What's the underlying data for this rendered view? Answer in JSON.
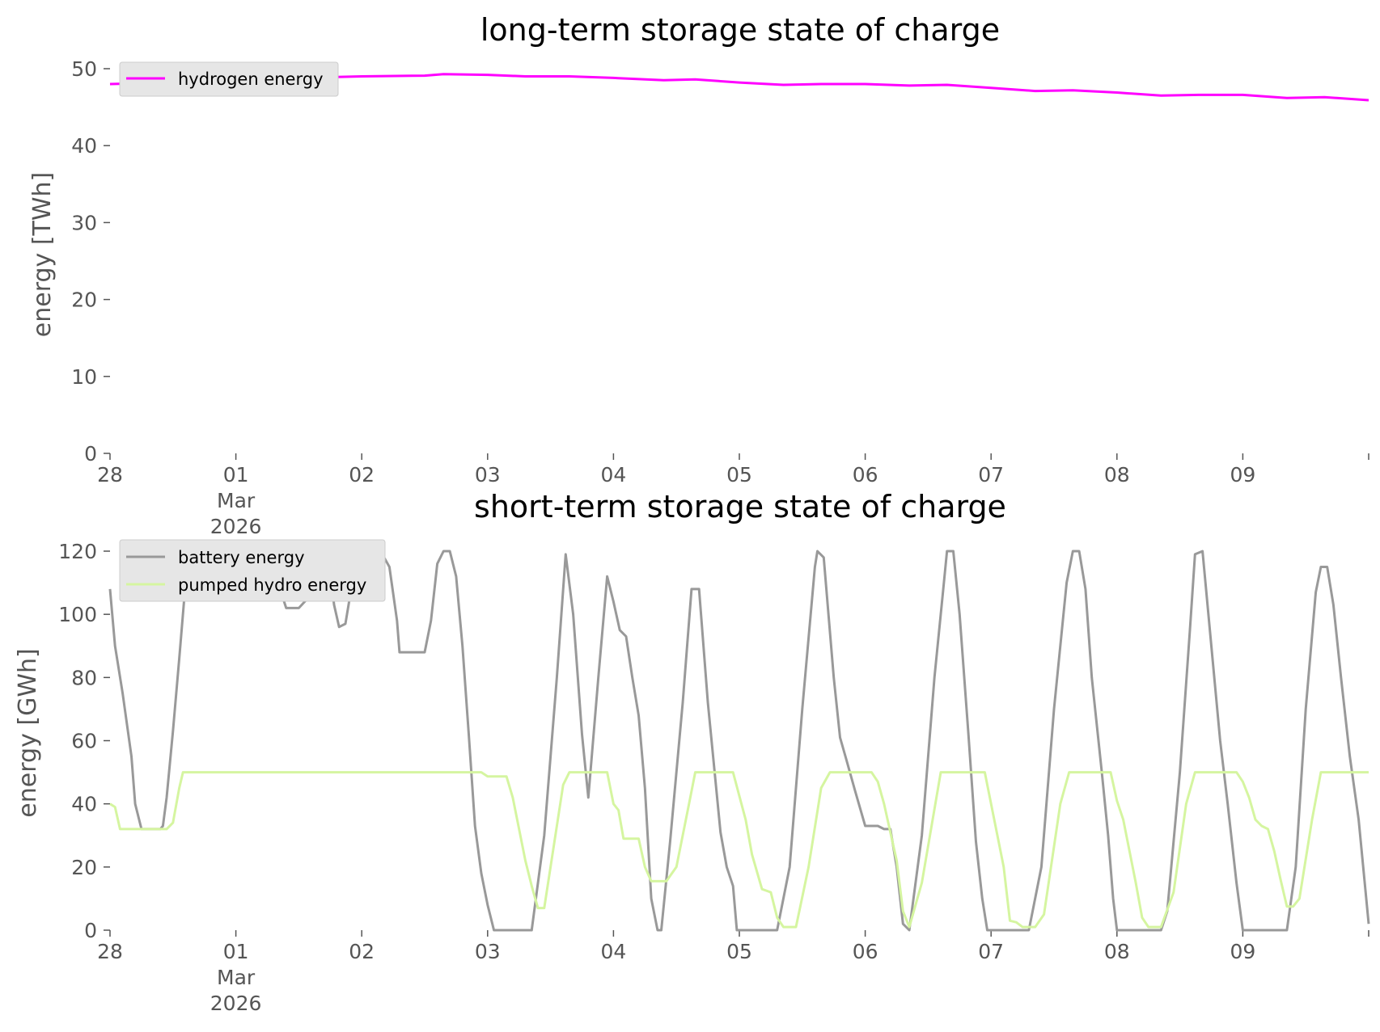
{
  "chart_data": [
    {
      "type": "line",
      "title": "long-term storage state of charge",
      "xlabel": "",
      "ylabel": "energy [TWh]",
      "ylim": [
        0,
        50
      ],
      "yticks": [
        "0",
        "10",
        "20",
        "30",
        "40",
        "50"
      ],
      "xlim": [
        0,
        10
      ],
      "xticks": [
        {
          "x": 0,
          "label": "28"
        },
        {
          "x": 1,
          "label": "01\nMar\n2026"
        },
        {
          "x": 2,
          "label": "02"
        },
        {
          "x": 3,
          "label": "03"
        },
        {
          "x": 4,
          "label": "04"
        },
        {
          "x": 5,
          "label": "05"
        },
        {
          "x": 6,
          "label": "06"
        },
        {
          "x": 7,
          "label": "07"
        },
        {
          "x": 8,
          "label": "08"
        },
        {
          "x": 9,
          "label": "09"
        },
        {
          "x": 10,
          "label": ""
        }
      ],
      "grid": false,
      "legend_position": "top-left",
      "series": [
        {
          "name": "hydrogen energy",
          "color": "#ff00ff",
          "points": [
            [
              0.0,
              48.0
            ],
            [
              0.5,
              48.2
            ],
            [
              1.0,
              48.6
            ],
            [
              1.5,
              48.8
            ],
            [
              2.0,
              49.0
            ],
            [
              2.5,
              49.1
            ],
            [
              2.65,
              49.3
            ],
            [
              3.0,
              49.2
            ],
            [
              3.3,
              49.0
            ],
            [
              3.65,
              49.0
            ],
            [
              4.0,
              48.8
            ],
            [
              4.4,
              48.5
            ],
            [
              4.65,
              48.6
            ],
            [
              5.0,
              48.2
            ],
            [
              5.35,
              47.9
            ],
            [
              5.65,
              48.0
            ],
            [
              6.0,
              48.0
            ],
            [
              6.35,
              47.8
            ],
            [
              6.65,
              47.9
            ],
            [
              7.0,
              47.5
            ],
            [
              7.35,
              47.1
            ],
            [
              7.65,
              47.2
            ],
            [
              8.0,
              46.9
            ],
            [
              8.35,
              46.5
            ],
            [
              8.65,
              46.6
            ],
            [
              9.0,
              46.6
            ],
            [
              9.35,
              46.2
            ],
            [
              9.65,
              46.3
            ],
            [
              10.0,
              45.9
            ]
          ]
        }
      ]
    },
    {
      "type": "line",
      "title": "short-term storage state of charge",
      "xlabel": "",
      "ylabel": "energy [GWh]",
      "ylim": [
        0,
        120
      ],
      "yticks": [
        "0",
        "20",
        "40",
        "60",
        "80",
        "100",
        "120"
      ],
      "xlim": [
        0,
        10
      ],
      "xticks": [
        {
          "x": 0,
          "label": "28"
        },
        {
          "x": 1,
          "label": "01\nMar\n2026"
        },
        {
          "x": 2,
          "label": "02"
        },
        {
          "x": 3,
          "label": "03"
        },
        {
          "x": 4,
          "label": "04"
        },
        {
          "x": 5,
          "label": "05"
        },
        {
          "x": 6,
          "label": "06"
        },
        {
          "x": 7,
          "label": "07"
        },
        {
          "x": 8,
          "label": "08"
        },
        {
          "x": 9,
          "label": "09"
        },
        {
          "x": 10,
          "label": ""
        }
      ],
      "grid": false,
      "legend_position": "top-left",
      "series": [
        {
          "name": "battery energy",
          "color": "#999999",
          "points": [
            [
              0.0,
              108
            ],
            [
              0.04,
              90
            ],
            [
              0.1,
              75
            ],
            [
              0.17,
              55
            ],
            [
              0.2,
              40
            ],
            [
              0.25,
              32
            ],
            [
              0.4,
              32
            ],
            [
              0.42,
              33
            ],
            [
              0.45,
              42
            ],
            [
              0.5,
              63
            ],
            [
              0.55,
              86
            ],
            [
              0.6,
              110
            ],
            [
              0.65,
              120
            ],
            [
              1.1,
              120
            ],
            [
              1.25,
              120
            ],
            [
              1.3,
              115
            ],
            [
              1.35,
              108
            ],
            [
              1.4,
              102
            ],
            [
              1.5,
              102
            ],
            [
              1.57,
              105
            ],
            [
              1.6,
              115
            ],
            [
              1.65,
              120
            ],
            [
              1.7,
              120
            ],
            [
              1.75,
              113
            ],
            [
              1.78,
              103
            ],
            [
              1.82,
              96
            ],
            [
              1.87,
              97
            ],
            [
              1.95,
              116
            ],
            [
              2.0,
              120
            ],
            [
              2.15,
              120
            ],
            [
              2.22,
              115
            ],
            [
              2.28,
              98
            ],
            [
              2.3,
              88
            ],
            [
              2.45,
              88
            ],
            [
              2.5,
              88
            ],
            [
              2.55,
              98
            ],
            [
              2.6,
              116
            ],
            [
              2.65,
              120
            ],
            [
              2.7,
              120
            ],
            [
              2.75,
              112
            ],
            [
              2.8,
              90
            ],
            [
              2.85,
              62
            ],
            [
              2.9,
              33
            ],
            [
              2.95,
              18
            ],
            [
              3.0,
              8
            ],
            [
              3.05,
              0
            ],
            [
              3.35,
              0
            ],
            [
              3.45,
              30
            ],
            [
              3.55,
              80
            ],
            [
              3.62,
              119
            ],
            [
              3.68,
              100
            ],
            [
              3.75,
              62
            ],
            [
              3.8,
              42
            ],
            [
              3.88,
              80
            ],
            [
              3.95,
              112
            ],
            [
              4.0,
              104
            ],
            [
              4.05,
              95
            ],
            [
              4.1,
              93
            ],
            [
              4.15,
              80
            ],
            [
              4.2,
              68
            ],
            [
              4.25,
              45
            ],
            [
              4.3,
              10
            ],
            [
              4.35,
              0
            ],
            [
              4.38,
              0
            ],
            [
              4.45,
              28
            ],
            [
              4.55,
              72
            ],
            [
              4.62,
              108
            ],
            [
              4.68,
              108
            ],
            [
              4.75,
              72
            ],
            [
              4.85,
              31
            ],
            [
              4.9,
              20
            ],
            [
              4.95,
              14
            ],
            [
              4.98,
              0
            ],
            [
              5.3,
              0
            ],
            [
              5.4,
              20
            ],
            [
              5.5,
              70
            ],
            [
              5.6,
              115
            ],
            [
              5.62,
              120
            ],
            [
              5.67,
              118
            ],
            [
              5.75,
              80
            ],
            [
              5.8,
              61
            ],
            [
              5.85,
              54
            ],
            [
              5.92,
              44
            ],
            [
              6.0,
              33
            ],
            [
              6.1,
              33
            ],
            [
              6.15,
              32
            ],
            [
              6.2,
              32
            ],
            [
              6.25,
              20
            ],
            [
              6.3,
              2
            ],
            [
              6.35,
              0
            ],
            [
              6.45,
              30
            ],
            [
              6.55,
              80
            ],
            [
              6.62,
              108
            ],
            [
              6.65,
              120
            ],
            [
              6.7,
              120
            ],
            [
              6.75,
              100
            ],
            [
              6.82,
              62
            ],
            [
              6.88,
              28
            ],
            [
              6.93,
              10
            ],
            [
              6.97,
              0
            ],
            [
              7.3,
              0
            ],
            [
              7.4,
              20
            ],
            [
              7.5,
              70
            ],
            [
              7.6,
              110
            ],
            [
              7.65,
              120
            ],
            [
              7.7,
              120
            ],
            [
              7.75,
              108
            ],
            [
              7.8,
              80
            ],
            [
              7.88,
              50
            ],
            [
              7.93,
              30
            ],
            [
              7.97,
              10
            ],
            [
              8.0,
              0
            ],
            [
              8.35,
              0
            ],
            [
              8.4,
              6
            ],
            [
              8.5,
              50
            ],
            [
              8.58,
              95
            ],
            [
              8.62,
              119
            ],
            [
              8.68,
              120
            ],
            [
              8.75,
              90
            ],
            [
              8.82,
              60
            ],
            [
              8.88,
              40
            ],
            [
              8.95,
              15
            ],
            [
              9.0,
              0
            ],
            [
              9.35,
              0
            ],
            [
              9.42,
              20
            ],
            [
              9.5,
              70
            ],
            [
              9.58,
              107
            ],
            [
              9.62,
              115
            ],
            [
              9.67,
              115
            ],
            [
              9.72,
              103
            ],
            [
              9.78,
              80
            ],
            [
              9.85,
              55
            ],
            [
              9.92,
              35
            ],
            [
              10.0,
              2
            ]
          ]
        },
        {
          "name": "pumped hydro energy",
          "color": "#d5f5a0",
          "points": [
            [
              0.0,
              40
            ],
            [
              0.04,
              39
            ],
            [
              0.08,
              32
            ],
            [
              0.2,
              32
            ],
            [
              0.35,
              32
            ],
            [
              0.45,
              32
            ],
            [
              0.5,
              34
            ],
            [
              0.55,
              45
            ],
            [
              0.58,
              50
            ],
            [
              1.0,
              50
            ],
            [
              2.0,
              50
            ],
            [
              2.95,
              50
            ],
            [
              3.0,
              48.7
            ],
            [
              3.15,
              48.7
            ],
            [
              3.2,
              42
            ],
            [
              3.3,
              22
            ],
            [
              3.35,
              14
            ],
            [
              3.4,
              7
            ],
            [
              3.45,
              7
            ],
            [
              3.6,
              46
            ],
            [
              3.65,
              50
            ],
            [
              3.95,
              50
            ],
            [
              4.0,
              40
            ],
            [
              4.04,
              38
            ],
            [
              4.08,
              29
            ],
            [
              4.2,
              29
            ],
            [
              4.25,
              20
            ],
            [
              4.3,
              15.5
            ],
            [
              4.42,
              15.5
            ],
            [
              4.5,
              20
            ],
            [
              4.6,
              40
            ],
            [
              4.65,
              50
            ],
            [
              4.95,
              50
            ],
            [
              5.05,
              35
            ],
            [
              5.1,
              24
            ],
            [
              5.18,
              13
            ],
            [
              5.25,
              12
            ],
            [
              5.3,
              4
            ],
            [
              5.35,
              1
            ],
            [
              5.45,
              1
            ],
            [
              5.55,
              20
            ],
            [
              5.65,
              45
            ],
            [
              5.72,
              50
            ],
            [
              6.05,
              50
            ],
            [
              6.1,
              47
            ],
            [
              6.15,
              40
            ],
            [
              6.25,
              22
            ],
            [
              6.3,
              6
            ],
            [
              6.35,
              1
            ],
            [
              6.45,
              15
            ],
            [
              6.6,
              50
            ],
            [
              6.95,
              50
            ],
            [
              7.1,
              20
            ],
            [
              7.15,
              3
            ],
            [
              7.2,
              2.5
            ],
            [
              7.25,
              1
            ],
            [
              7.35,
              1
            ],
            [
              7.42,
              5
            ],
            [
              7.55,
              40
            ],
            [
              7.62,
              50
            ],
            [
              7.95,
              50
            ],
            [
              8.0,
              41
            ],
            [
              8.05,
              35
            ],
            [
              8.15,
              15
            ],
            [
              8.2,
              4
            ],
            [
              8.25,
              1
            ],
            [
              8.35,
              1
            ],
            [
              8.45,
              12
            ],
            [
              8.55,
              40
            ],
            [
              8.62,
              50
            ],
            [
              8.95,
              50
            ],
            [
              9.0,
              47
            ],
            [
              9.05,
              42
            ],
            [
              9.1,
              35
            ],
            [
              9.15,
              33
            ],
            [
              9.2,
              32
            ],
            [
              9.25,
              25
            ],
            [
              9.3,
              16
            ],
            [
              9.35,
              7.5
            ],
            [
              9.4,
              7.5
            ],
            [
              9.45,
              10
            ],
            [
              9.55,
              35
            ],
            [
              9.62,
              50
            ],
            [
              9.75,
              50
            ],
            [
              10.0,
              50
            ]
          ]
        }
      ]
    }
  ]
}
